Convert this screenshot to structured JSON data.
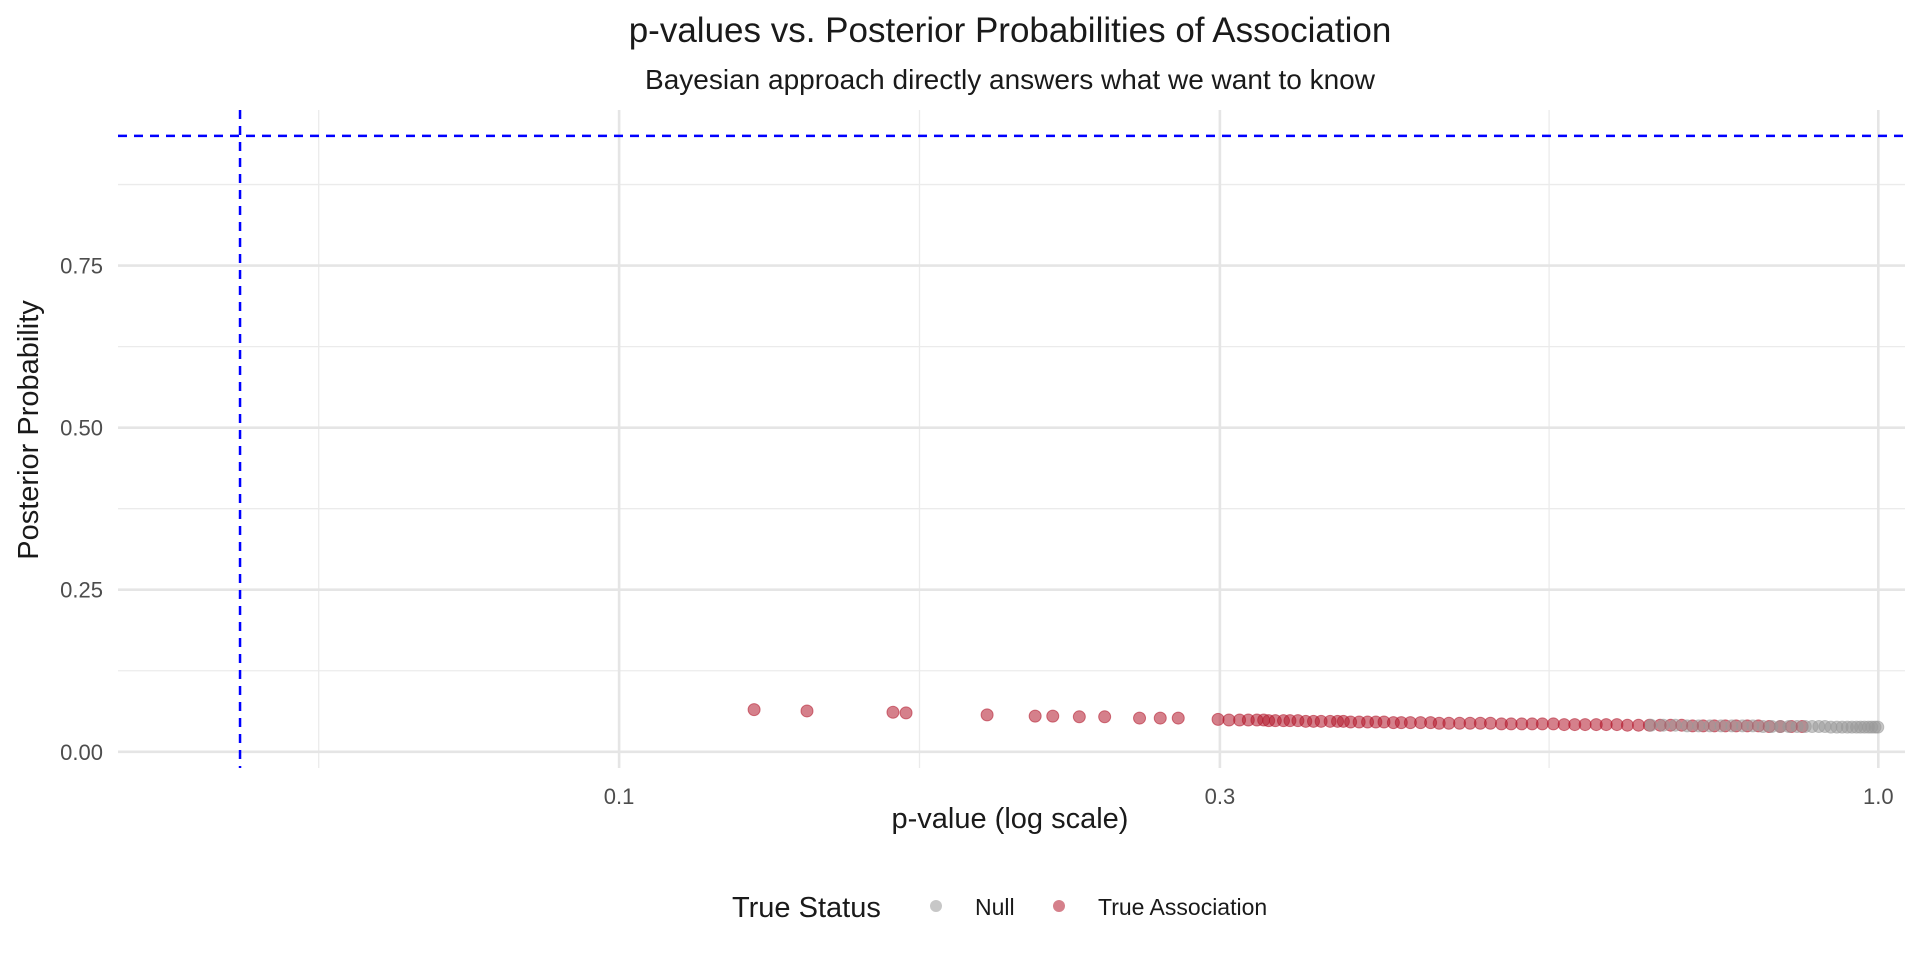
{
  "chart_data": {
    "type": "scatter",
    "title": "p-values vs. Posterior Probabilities of Association",
    "subtitle": "Bayesian approach directly answers what we want to know",
    "xlabel": "p-value (log scale)",
    "ylabel": "Posterior Probability",
    "x_scale": "log10",
    "xlim": [
      0.04,
      1.05
    ],
    "ylim": [
      -0.025,
      0.99
    ],
    "x_ticks": [
      {
        "value": 0.1,
        "label": "0.1"
      },
      {
        "value": 0.3,
        "label": "0.3"
      },
      {
        "value": 1.0,
        "label": "1.0"
      }
    ],
    "y_ticks": [
      {
        "value": 0.0,
        "label": "0.00"
      },
      {
        "value": 0.25,
        "label": "0.25"
      },
      {
        "value": 0.5,
        "label": "0.50"
      },
      {
        "value": 0.75,
        "label": "0.75"
      }
    ],
    "reference_lines": [
      {
        "orientation": "vertical",
        "value": 0.05,
        "color": "#0000ff",
        "style": "dashed"
      },
      {
        "orientation": "horizontal",
        "value": 0.95,
        "color": "#0000ff",
        "style": "dashed"
      }
    ],
    "grid": true,
    "legend": {
      "title": "True Status",
      "position": "bottom"
    },
    "series": [
      {
        "name": "True Association",
        "color": "#b2182b",
        "points": [
          [
            0.128,
            0.065
          ],
          [
            0.141,
            0.063
          ],
          [
            0.165,
            0.061
          ],
          [
            0.169,
            0.06
          ],
          [
            0.196,
            0.057
          ],
          [
            0.214,
            0.055
          ],
          [
            0.221,
            0.055
          ],
          [
            0.232,
            0.054
          ],
          [
            0.243,
            0.054
          ],
          [
            0.259,
            0.052
          ],
          [
            0.269,
            0.052
          ],
          [
            0.278,
            0.052
          ],
          [
            0.299,
            0.05
          ],
          [
            0.305,
            0.049
          ],
          [
            0.311,
            0.049
          ],
          [
            0.316,
            0.049
          ],
          [
            0.321,
            0.049
          ],
          [
            0.325,
            0.049
          ],
          [
            0.328,
            0.048
          ],
          [
            0.332,
            0.048
          ],
          [
            0.337,
            0.048
          ],
          [
            0.341,
            0.048
          ],
          [
            0.346,
            0.048
          ],
          [
            0.351,
            0.047
          ],
          [
            0.356,
            0.047
          ],
          [
            0.361,
            0.047
          ],
          [
            0.367,
            0.047
          ],
          [
            0.372,
            0.047
          ],
          [
            0.376,
            0.047
          ],
          [
            0.381,
            0.046
          ],
          [
            0.387,
            0.046
          ],
          [
            0.393,
            0.046
          ],
          [
            0.399,
            0.046
          ],
          [
            0.405,
            0.046
          ],
          [
            0.412,
            0.045
          ],
          [
            0.418,
            0.045
          ],
          [
            0.425,
            0.045
          ],
          [
            0.433,
            0.045
          ],
          [
            0.441,
            0.045
          ],
          [
            0.448,
            0.044
          ],
          [
            0.456,
            0.044
          ],
          [
            0.465,
            0.044
          ],
          [
            0.474,
            0.044
          ],
          [
            0.483,
            0.044
          ],
          [
            0.492,
            0.044
          ],
          [
            0.502,
            0.043
          ],
          [
            0.511,
            0.043
          ],
          [
            0.521,
            0.043
          ],
          [
            0.531,
            0.043
          ],
          [
            0.541,
            0.043
          ],
          [
            0.552,
            0.043
          ],
          [
            0.563,
            0.042
          ],
          [
            0.574,
            0.042
          ],
          [
            0.585,
            0.042
          ],
          [
            0.597,
            0.042
          ],
          [
            0.608,
            0.042
          ],
          [
            0.62,
            0.042
          ],
          [
            0.632,
            0.041
          ],
          [
            0.645,
            0.041
          ],
          [
            0.658,
            0.041
          ],
          [
            0.671,
            0.041
          ],
          [
            0.684,
            0.041
          ],
          [
            0.698,
            0.041
          ],
          [
            0.712,
            0.04
          ],
          [
            0.726,
            0.04
          ],
          [
            0.741,
            0.04
          ],
          [
            0.756,
            0.04
          ],
          [
            0.771,
            0.04
          ],
          [
            0.787,
            0.04
          ],
          [
            0.803,
            0.04
          ],
          [
            0.819,
            0.039
          ],
          [
            0.836,
            0.039
          ],
          [
            0.853,
            0.039
          ],
          [
            0.87,
            0.039
          ]
        ]
      },
      {
        "name": "Null",
        "color": "#999999",
        "points": [
          [
            0.66,
            0.041
          ],
          [
            0.675,
            0.041
          ],
          [
            0.69,
            0.041
          ],
          [
            0.705,
            0.04
          ],
          [
            0.72,
            0.04
          ],
          [
            0.735,
            0.04
          ],
          [
            0.75,
            0.04
          ],
          [
            0.765,
            0.04
          ],
          [
            0.78,
            0.04
          ],
          [
            0.795,
            0.04
          ],
          [
            0.81,
            0.039
          ],
          [
            0.823,
            0.039
          ],
          [
            0.836,
            0.039
          ],
          [
            0.849,
            0.039
          ],
          [
            0.862,
            0.039
          ],
          [
            0.875,
            0.039
          ],
          [
            0.886,
            0.039
          ],
          [
            0.897,
            0.039
          ],
          [
            0.907,
            0.039
          ],
          [
            0.917,
            0.038
          ],
          [
            0.927,
            0.038
          ],
          [
            0.936,
            0.038
          ],
          [
            0.945,
            0.038
          ],
          [
            0.953,
            0.038
          ],
          [
            0.961,
            0.038
          ],
          [
            0.968,
            0.038
          ],
          [
            0.975,
            0.038
          ],
          [
            0.982,
            0.038
          ],
          [
            0.988,
            0.038
          ],
          [
            0.994,
            0.038
          ],
          [
            0.999,
            0.038
          ]
        ]
      }
    ]
  }
}
